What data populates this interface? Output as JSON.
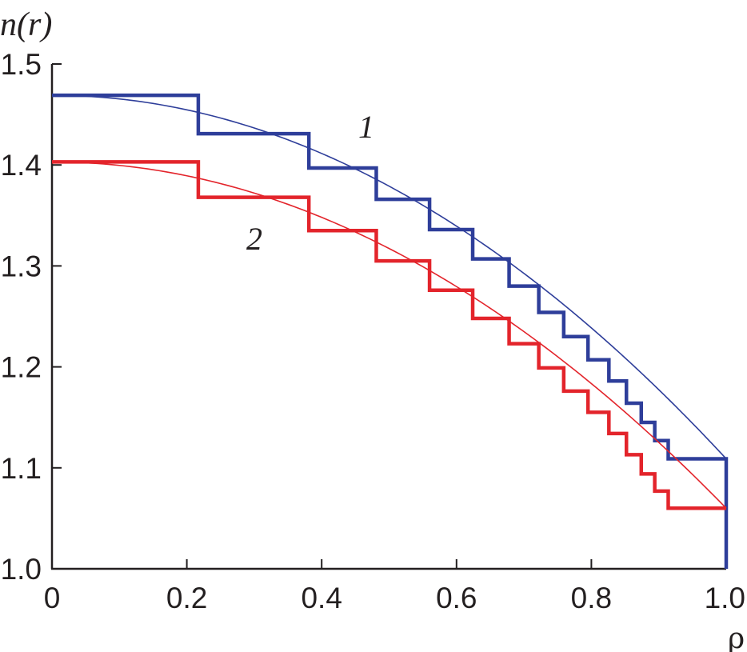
{
  "chart_data": {
    "type": "line",
    "ylabel": "n(r)",
    "xlabel": "ρ",
    "xlim": [
      0,
      1.0
    ],
    "ylim": [
      1.0,
      1.5
    ],
    "xticks": [
      "0",
      "0.2",
      "0.4",
      "0.6",
      "0.8",
      "1.0"
    ],
    "yticks": [
      "1.0",
      "1.1",
      "1.2",
      "1.3",
      "1.4",
      "1.5"
    ],
    "grid": false,
    "series": [
      {
        "name": "1",
        "color": "#2e3e9a",
        "smooth": {
          "n0": 1.469,
          "n1": 1.109
        },
        "steps": [
          {
            "from": 0.0,
            "to": 0.217,
            "value": 1.469
          },
          {
            "from": 0.217,
            "to": 0.381,
            "value": 1.431
          },
          {
            "from": 0.381,
            "to": 0.481,
            "value": 1.397
          },
          {
            "from": 0.481,
            "to": 0.56,
            "value": 1.366
          },
          {
            "from": 0.56,
            "to": 0.624,
            "value": 1.336
          },
          {
            "from": 0.624,
            "to": 0.678,
            "value": 1.307
          },
          {
            "from": 0.678,
            "to": 0.722,
            "value": 1.28
          },
          {
            "from": 0.722,
            "to": 0.759,
            "value": 1.254
          },
          {
            "from": 0.759,
            "to": 0.795,
            "value": 1.23
          },
          {
            "from": 0.795,
            "to": 0.826,
            "value": 1.207
          },
          {
            "from": 0.826,
            "to": 0.852,
            "value": 1.186
          },
          {
            "from": 0.852,
            "to": 0.874,
            "value": 1.164
          },
          {
            "from": 0.874,
            "to": 0.894,
            "value": 1.145
          },
          {
            "from": 0.894,
            "to": 0.914,
            "value": 1.127
          },
          {
            "from": 0.914,
            "to": 1.0,
            "value": 1.109
          }
        ],
        "end_drop_to": 1.0
      },
      {
        "name": "2",
        "color": "#e3242b",
        "smooth": {
          "n0": 1.403,
          "n1": 1.06
        },
        "steps": [
          {
            "from": 0.0,
            "to": 0.217,
            "value": 1.403
          },
          {
            "from": 0.217,
            "to": 0.381,
            "value": 1.368
          },
          {
            "from": 0.381,
            "to": 0.481,
            "value": 1.335
          },
          {
            "from": 0.481,
            "to": 0.56,
            "value": 1.305
          },
          {
            "from": 0.56,
            "to": 0.624,
            "value": 1.276
          },
          {
            "from": 0.624,
            "to": 0.678,
            "value": 1.248
          },
          {
            "from": 0.678,
            "to": 0.722,
            "value": 1.223
          },
          {
            "from": 0.722,
            "to": 0.759,
            "value": 1.199
          },
          {
            "from": 0.759,
            "to": 0.795,
            "value": 1.176
          },
          {
            "from": 0.795,
            "to": 0.826,
            "value": 1.155
          },
          {
            "from": 0.826,
            "to": 0.852,
            "value": 1.134
          },
          {
            "from": 0.852,
            "to": 0.874,
            "value": 1.113
          },
          {
            "from": 0.874,
            "to": 0.894,
            "value": 1.094
          },
          {
            "from": 0.894,
            "to": 0.914,
            "value": 1.077
          },
          {
            "from": 0.914,
            "to": 1.0,
            "value": 1.06
          }
        ]
      }
    ]
  }
}
